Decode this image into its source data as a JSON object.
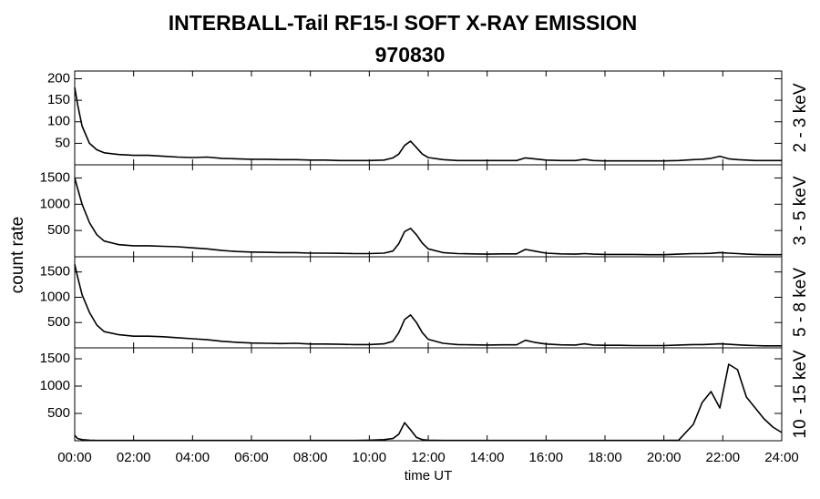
{
  "chart_data": {
    "type": "line",
    "title": "INTERBALL-Tail RF15-I SOFT X-RAY EMISSION",
    "subtitle": "970830",
    "xlabel": "time UT",
    "ylabel": "count rate",
    "color": "#000000",
    "xlim": [
      0,
      24
    ],
    "xticks": [
      {
        "value": 0,
        "label": "00:00"
      },
      {
        "value": 2,
        "label": "02:00"
      },
      {
        "value": 4,
        "label": "04:00"
      },
      {
        "value": 6,
        "label": "06:00"
      },
      {
        "value": 8,
        "label": "08:00"
      },
      {
        "value": 10,
        "label": "10:00"
      },
      {
        "value": 12,
        "label": "12:00"
      },
      {
        "value": 14,
        "label": "14:00"
      },
      {
        "value": 16,
        "label": "16:00"
      },
      {
        "value": 18,
        "label": "18:00"
      },
      {
        "value": 20,
        "label": "20:00"
      },
      {
        "value": 22,
        "label": "22:00"
      },
      {
        "value": 24,
        "label": "24:00"
      }
    ],
    "x": [
      0,
      0.1,
      0.25,
      0.5,
      0.75,
      1,
      1.5,
      2,
      2.5,
      3,
      3.5,
      4,
      4.5,
      5,
      5.5,
      6,
      6.5,
      7,
      7.5,
      8,
      8.5,
      9,
      9.5,
      10,
      10.5,
      10.8,
      11,
      11.2,
      11.4,
      11.6,
      11.8,
      12,
      12.5,
      13,
      13.5,
      14,
      14.5,
      15,
      15.3,
      15.6,
      16,
      16.5,
      17,
      17.3,
      17.6,
      18,
      18.5,
      19,
      19.5,
      20,
      20.5,
      21,
      21.3,
      21.6,
      21.9,
      22.2,
      22.5,
      22.8,
      23.1,
      23.4,
      23.7,
      24
    ],
    "panels": [
      {
        "name": "2 - 3 keV",
        "ylim": [
          0,
          218
        ],
        "yticks": [
          50,
          100,
          150,
          200
        ],
        "values": [
          180,
          140,
          90,
          50,
          35,
          28,
          24,
          22,
          22,
          20,
          18,
          17,
          18,
          15,
          14,
          13,
          13,
          12,
          12,
          11,
          11,
          10,
          10,
          10,
          11,
          16,
          25,
          45,
          55,
          40,
          25,
          17,
          12,
          10,
          10,
          10,
          10,
          10,
          16,
          14,
          11,
          10,
          10,
          13,
          10,
          9,
          9,
          9,
          9,
          9,
          10,
          12,
          13,
          15,
          20,
          14,
          12,
          11,
          10,
          10,
          10,
          10
        ]
      },
      {
        "name": "3 - 5 keV",
        "ylim": [
          0,
          1750
        ],
        "yticks": [
          500,
          1000,
          1500
        ],
        "values": [
          1500,
          1300,
          1000,
          650,
          420,
          300,
          230,
          210,
          210,
          200,
          190,
          170,
          150,
          120,
          100,
          90,
          85,
          80,
          80,
          70,
          70,
          65,
          60,
          60,
          70,
          110,
          250,
          480,
          540,
          420,
          260,
          150,
          80,
          60,
          55,
          50,
          55,
          55,
          140,
          110,
          70,
          55,
          50,
          60,
          50,
          45,
          45,
          45,
          40,
          40,
          50,
          60,
          60,
          65,
          80,
          70,
          60,
          50,
          45,
          40,
          40,
          40
        ]
      },
      {
        "name": "5 - 8 keV",
        "ylim": [
          0,
          1800
        ],
        "yticks": [
          500,
          1000,
          1500
        ],
        "values": [
          1650,
          1400,
          1050,
          700,
          450,
          320,
          260,
          230,
          230,
          220,
          200,
          180,
          160,
          130,
          110,
          95,
          90,
          85,
          90,
          75,
          75,
          70,
          65,
          65,
          80,
          130,
          300,
          560,
          650,
          500,
          300,
          170,
          90,
          65,
          60,
          55,
          60,
          60,
          150,
          110,
          75,
          60,
          55,
          80,
          55,
          50,
          50,
          45,
          45,
          45,
          55,
          65,
          65,
          70,
          80,
          70,
          60,
          50,
          45,
          40,
          40,
          40
        ]
      },
      {
        "name": "10 - 15 keV",
        "ylim": [
          0,
          1700
        ],
        "yticks": [
          500,
          1000,
          1500
        ],
        "values": [
          100,
          40,
          20,
          10,
          5,
          5,
          5,
          5,
          5,
          5,
          5,
          5,
          5,
          5,
          5,
          5,
          5,
          5,
          5,
          5,
          5,
          5,
          5,
          10,
          20,
          40,
          120,
          330,
          200,
          60,
          20,
          10,
          5,
          5,
          5,
          5,
          5,
          5,
          5,
          5,
          5,
          5,
          5,
          5,
          5,
          5,
          5,
          5,
          5,
          5,
          10,
          300,
          700,
          900,
          600,
          1400,
          1300,
          800,
          600,
          400,
          250,
          150
        ]
      }
    ]
  }
}
